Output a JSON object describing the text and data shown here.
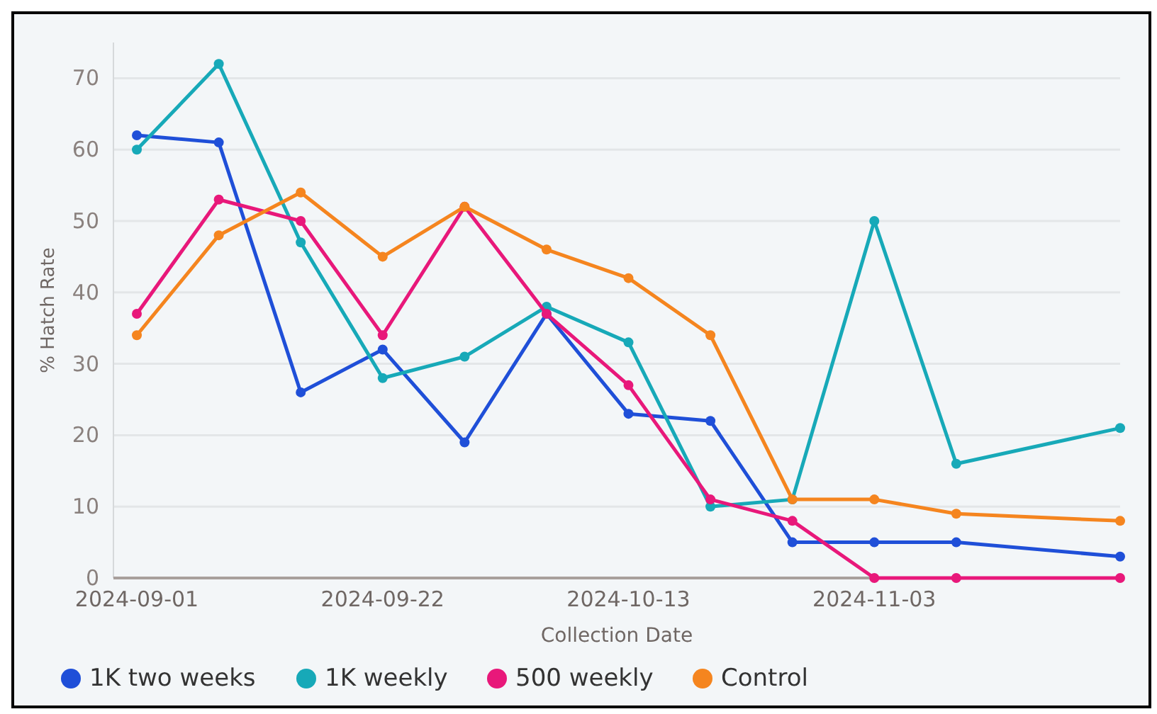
{
  "chart_data": {
    "type": "line",
    "xlabel": "Collection Date",
    "ylabel": "% Hatch Rate",
    "x": [
      "2024-09-01",
      "2024-09-08",
      "2024-09-15",
      "2024-09-22",
      "2024-09-29",
      "2024-10-06",
      "2024-10-13",
      "2024-10-20",
      "2024-10-27",
      "2024-11-03",
      "2024-11-10",
      "2024-11-24"
    ],
    "series": [
      {
        "name": "1K two weeks",
        "color": "#1f4fd8",
        "values": [
          62,
          61,
          26,
          32,
          19,
          37,
          23,
          22,
          5,
          5,
          5,
          3
        ]
      },
      {
        "name": "1K weekly",
        "color": "#17a9b8",
        "values": [
          60,
          72,
          47,
          28,
          31,
          38,
          33,
          10,
          11,
          50,
          16,
          21
        ]
      },
      {
        "name": "500 weekly",
        "color": "#e8187a",
        "values": [
          37,
          53,
          50,
          34,
          52,
          37,
          27,
          11,
          8,
          0,
          0,
          0
        ]
      },
      {
        "name": "Control",
        "color": "#f5851f",
        "values": [
          34,
          48,
          54,
          45,
          52,
          46,
          42,
          34,
          11,
          11,
          9,
          8
        ]
      }
    ],
    "xlim": [
      "2024-08-30",
      "2024-11-24"
    ],
    "xticks": [
      "2024-09-01",
      "2024-09-22",
      "2024-10-13",
      "2024-11-03"
    ],
    "ylim": [
      0,
      75
    ],
    "yticks": [
      0,
      10,
      20,
      30,
      40,
      50,
      60,
      70
    ],
    "grid": "y",
    "legend": "bottom",
    "marker": "circle",
    "line_style": "solid"
  }
}
